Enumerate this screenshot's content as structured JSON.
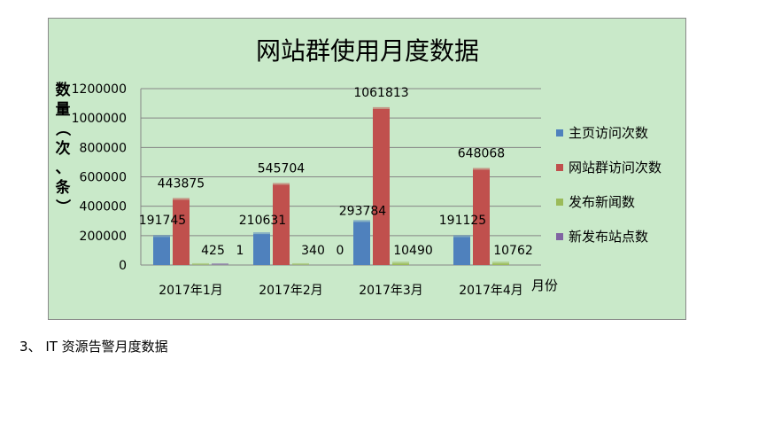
{
  "chart_data": {
    "type": "bar",
    "title": "网站群使用月度数据",
    "ylabel": "数量（次、条）",
    "xlabel": "月份",
    "categories": [
      "2017年1月",
      "2017年2月",
      "2017年3月",
      "2017年4月"
    ],
    "yticks": [
      "0",
      "200000",
      "400000",
      "600000",
      "800000",
      "1000000",
      "1200000"
    ],
    "ylim": [
      0,
      1200000
    ],
    "grid": true,
    "legend_position": "right",
    "series": [
      {
        "name": "主页访问次数",
        "color": "#4f81bd",
        "values": [
          191745,
          210631,
          293784,
          191125
        ],
        "labels": [
          "191745",
          "210631",
          "293784",
          "191125"
        ]
      },
      {
        "name": "网站群访问次数",
        "color": "#c0504d",
        "values": [
          443875,
          545704,
          1061813,
          648068
        ],
        "labels": [
          "443875",
          "545704",
          "1061813",
          "648068"
        ]
      },
      {
        "name": "发布新闻数",
        "color": "#9bbb59",
        "values": [
          425,
          340,
          10490,
          10762
        ],
        "labels": [
          "425",
          "340",
          "10490",
          "10762"
        ]
      },
      {
        "name": "新发布站点数",
        "color": "#8064a2",
        "values": [
          1,
          0,
          0,
          0
        ],
        "labels": [
          "1",
          "0",
          "",
          ""
        ]
      }
    ]
  },
  "document": {
    "section_number": "3、",
    "section_title": "IT 资源告警月度数据"
  }
}
